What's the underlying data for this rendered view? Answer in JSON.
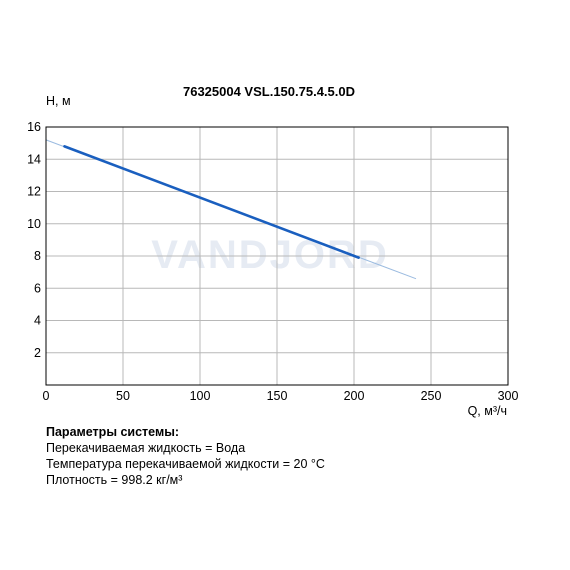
{
  "chart_data": {
    "type": "line",
    "title": "76325004 VSL.150.75.4.5.0D",
    "xlabel": "Q, м³/ч",
    "ylabel": "H, м",
    "xlim": [
      0,
      300
    ],
    "ylim": [
      0,
      16
    ],
    "xticks": [
      "0",
      "50",
      "100",
      "150",
      "200",
      "250",
      "300"
    ],
    "yticks": [
      "2",
      "4",
      "6",
      "8",
      "10",
      "12",
      "14",
      "16"
    ],
    "grid": true,
    "watermark": "VANDJORD",
    "series": [
      {
        "role": "working-range",
        "color": "#1a5fbf",
        "x": [
          12,
          203
        ],
        "y": [
          14.8,
          7.9
        ]
      },
      {
        "role": "full-curve",
        "color": "#9bbbe0",
        "x": [
          0,
          240
        ],
        "y": [
          15.2,
          6.6
        ]
      }
    ]
  },
  "params": {
    "title": "Параметры системы:",
    "lines": [
      "Перекачиваемая жидкость = Вода",
      "Температура перекачиваемой жидкости = 20 °C",
      "Плотность = 998.2 кг/м³"
    ]
  }
}
